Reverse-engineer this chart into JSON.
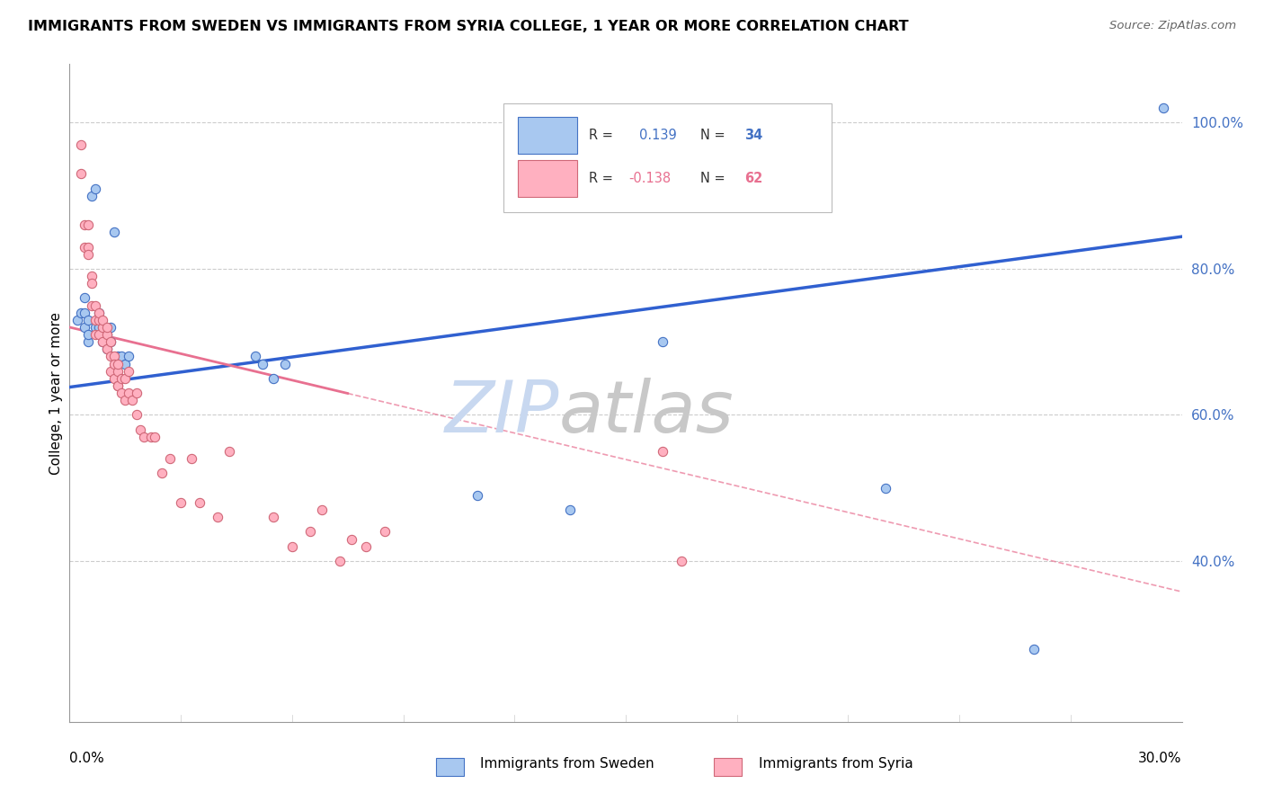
{
  "title": "IMMIGRANTS FROM SWEDEN VS IMMIGRANTS FROM SYRIA COLLEGE, 1 YEAR OR MORE CORRELATION CHART",
  "source": "Source: ZipAtlas.com",
  "ylabel": "College, 1 year or more",
  "right_ytick_vals": [
    0.4,
    0.6,
    0.8,
    1.0
  ],
  "right_ytick_labels": [
    "40.0%",
    "60.0%",
    "80.0%",
    "100.0%"
  ],
  "xmin": 0.0,
  "xmax": 0.3,
  "ymin": 0.18,
  "ymax": 1.08,
  "sweden_color": "#a8c8f0",
  "sweden_edge_color": "#4472c4",
  "syria_color": "#ffb0c0",
  "syria_edge_color": "#d06878",
  "sweden_line_color": "#3060d0",
  "syria_line_color": "#e87090",
  "grid_color": "#cccccc",
  "watermark_zip_color": "#c8d8f0",
  "watermark_atlas_color": "#c8c8c8",
  "sweden_scatter_x": [
    0.002,
    0.003,
    0.004,
    0.004,
    0.004,
    0.005,
    0.005,
    0.005,
    0.006,
    0.007,
    0.007,
    0.008,
    0.008,
    0.009,
    0.009,
    0.01,
    0.01,
    0.011,
    0.011,
    0.012,
    0.013,
    0.014,
    0.015,
    0.016,
    0.05,
    0.052,
    0.055,
    0.058,
    0.11,
    0.135,
    0.16,
    0.22,
    0.26,
    0.295
  ],
  "sweden_scatter_y": [
    0.73,
    0.74,
    0.72,
    0.74,
    0.76,
    0.7,
    0.71,
    0.73,
    0.9,
    0.91,
    0.72,
    0.72,
    0.74,
    0.7,
    0.72,
    0.69,
    0.71,
    0.7,
    0.72,
    0.85,
    0.68,
    0.68,
    0.67,
    0.68,
    0.68,
    0.67,
    0.65,
    0.67,
    0.49,
    0.47,
    0.7,
    0.5,
    0.28,
    1.02
  ],
  "syria_scatter_x": [
    0.003,
    0.003,
    0.004,
    0.004,
    0.005,
    0.005,
    0.005,
    0.006,
    0.006,
    0.006,
    0.007,
    0.007,
    0.007,
    0.008,
    0.008,
    0.008,
    0.009,
    0.009,
    0.009,
    0.01,
    0.01,
    0.01,
    0.011,
    0.011,
    0.011,
    0.012,
    0.012,
    0.012,
    0.013,
    0.013,
    0.013,
    0.013,
    0.014,
    0.014,
    0.015,
    0.015,
    0.016,
    0.016,
    0.017,
    0.018,
    0.018,
    0.019,
    0.02,
    0.022,
    0.023,
    0.025,
    0.027,
    0.03,
    0.033,
    0.035,
    0.04,
    0.043,
    0.055,
    0.06,
    0.065,
    0.068,
    0.073,
    0.076,
    0.08,
    0.085,
    0.16,
    0.165
  ],
  "syria_scatter_y": [
    0.97,
    0.93,
    0.86,
    0.83,
    0.83,
    0.82,
    0.86,
    0.79,
    0.78,
    0.75,
    0.73,
    0.71,
    0.75,
    0.73,
    0.71,
    0.74,
    0.72,
    0.7,
    0.73,
    0.71,
    0.69,
    0.72,
    0.68,
    0.66,
    0.7,
    0.68,
    0.67,
    0.65,
    0.66,
    0.64,
    0.67,
    0.64,
    0.65,
    0.63,
    0.65,
    0.62,
    0.63,
    0.66,
    0.62,
    0.6,
    0.63,
    0.58,
    0.57,
    0.57,
    0.57,
    0.52,
    0.54,
    0.48,
    0.54,
    0.48,
    0.46,
    0.55,
    0.46,
    0.42,
    0.44,
    0.47,
    0.4,
    0.43,
    0.42,
    0.44,
    0.55,
    0.4
  ],
  "sweden_trend_x": [
    0.0,
    0.3
  ],
  "sweden_trend_y": [
    0.638,
    0.844
  ],
  "syria_trend_x": [
    0.0,
    0.3
  ],
  "syria_trend_y": [
    0.72,
    0.358
  ]
}
